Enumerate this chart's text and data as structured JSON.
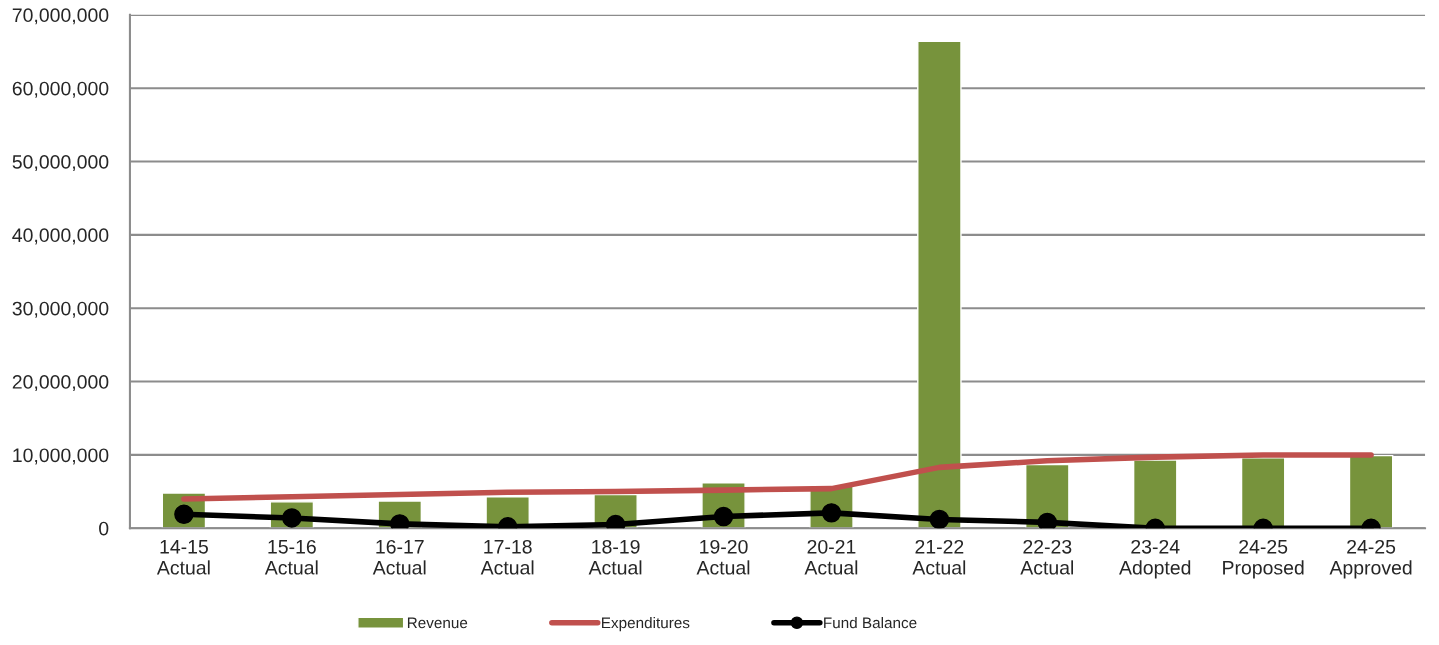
{
  "chart_data": {
    "type": "bar",
    "categories": [
      "14-15\nActual",
      "15-16\nActual",
      "16-17\nActual",
      "17-18\nActual",
      "18-19\nActual",
      "19-20\nActual",
      "20-21\nActual",
      "21-22\nActual",
      "22-23\nActual",
      "23-24\nAdopted",
      "24-25\nProposed",
      "24-25\nApproved"
    ],
    "series": [
      {
        "name": "Revenue",
        "color": "#77933c",
        "values": [
          4800000,
          3600000,
          3700000,
          4300000,
          4600000,
          6200000,
          5800000,
          66400000,
          8700000,
          9300000,
          9600000,
          9900000
        ]
      },
      {
        "name": "Expenditures",
        "type": "line",
        "color": "#c0504d",
        "marker": "none",
        "values": [
          4000000,
          4300000,
          4600000,
          4900000,
          5000000,
          5200000,
          5400000,
          8300000,
          9200000,
          9700000,
          10000000,
          10000000
        ]
      },
      {
        "name": "Fund Balance",
        "type": "line",
        "color": "#000000",
        "marker": "circle",
        "values": [
          1900000,
          1400000,
          600000,
          200000,
          500000,
          1600000,
          2100000,
          1200000,
          800000,
          0,
          0,
          0
        ]
      }
    ],
    "ylim": [
      0,
      70000000
    ],
    "yticks": [
      0,
      {
        "value": 10000000,
        "label": "10,000,000"
      },
      {
        "value": 20000000,
        "label": "20,000,000"
      },
      {
        "value": 30000000,
        "label": "30,000,000"
      },
      {
        "value": 40000000,
        "label": "40,000,000"
      },
      {
        "value": 50000000,
        "label": "50,000,000"
      },
      {
        "value": 60000000,
        "label": "60,000,000"
      },
      {
        "value": 70000000,
        "label": "70,000,000"
      }
    ],
    "grid": "y",
    "legend": "bottom"
  }
}
